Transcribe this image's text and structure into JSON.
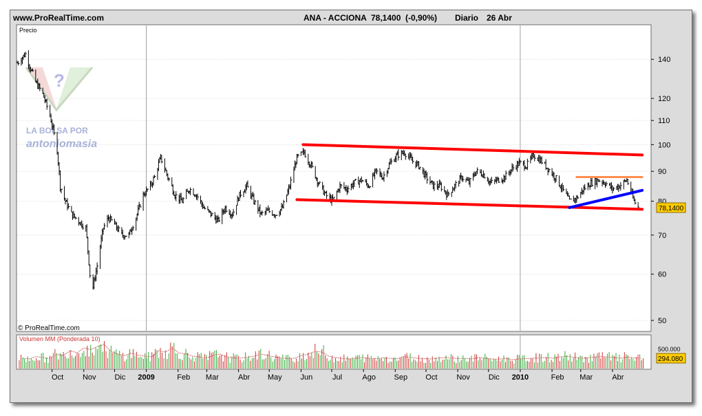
{
  "header": {
    "site": "www.ProRealTime.com",
    "symbol": "ANA - ACCIONA",
    "price": "78,1400",
    "change": "(-0,90%)",
    "period": "Diario",
    "date": "26 Abr"
  },
  "watermark": {
    "line1": "LA BOLSA POR",
    "line2": "antoniomasia"
  },
  "footer": {
    "copyright": "© ProRealTime.com"
  },
  "price_panel": {
    "label": "Precio",
    "last_value": "78,1400"
  },
  "volume_panel": {
    "label": "Volumen MM (Ponderada 10)",
    "last_value": "294.080",
    "top_tick": "500.000"
  },
  "colors": {
    "trend": "#ff0000",
    "resistance": "#ff8c50",
    "support": "#0000ff",
    "bar": "#000000",
    "volume_up": "#33aa33",
    "volume_down": "#cc3333",
    "price_badge": "#ffcc00"
  },
  "chart_data": {
    "type": "line",
    "title": "ANA - ACCIONA 78,1400 (-0,90%) Diario 26 Abr",
    "scale": "log",
    "ylim": [
      48,
      160
    ],
    "yticks": [
      50,
      60,
      70,
      80,
      90,
      100,
      110,
      120,
      140
    ],
    "xtick_labels": [
      "Oct",
      "Nov",
      "Dic",
      "2009",
      "Feb",
      "Mar",
      "Abr",
      "May",
      "Jun",
      "Jul",
      "Ago",
      "Sep",
      "Oct",
      "Nov",
      "Dic",
      "2010",
      "Feb",
      "Mar",
      "Abr"
    ],
    "grid": true,
    "series": [
      {
        "x": [
          "2008-08-28",
          "2008-09-05",
          "2008-09-10",
          "2008-09-15",
          "2008-09-22",
          "2008-09-29",
          "2008-10-06",
          "2008-10-09",
          "2008-10-14",
          "2008-10-20",
          "2008-10-27",
          "2008-11-03",
          "2008-11-07",
          "2008-11-10",
          "2008-11-14",
          "2008-11-20",
          "2008-11-25",
          "2008-12-01",
          "2008-12-08",
          "2008-12-15",
          "2008-12-22",
          "2008-12-29",
          "2009-01-05",
          "2009-01-09",
          "2009-01-15",
          "2009-01-22",
          "2009-01-29",
          "2009-02-05",
          "2009-02-12",
          "2009-02-19",
          "2009-02-26",
          "2009-03-05",
          "2009-03-12",
          "2009-03-19",
          "2009-03-26",
          "2009-04-02",
          "2009-04-09",
          "2009-04-16",
          "2009-04-23",
          "2009-04-30",
          "2009-05-07",
          "2009-05-14",
          "2009-05-21",
          "2009-05-28",
          "2009-06-04",
          "2009-06-11",
          "2009-06-18",
          "2009-06-25",
          "2009-07-02",
          "2009-07-09",
          "2009-07-16",
          "2009-07-23",
          "2009-07-30",
          "2009-08-06",
          "2009-08-13",
          "2009-08-20",
          "2009-08-27",
          "2009-09-03",
          "2009-09-10",
          "2009-09-17",
          "2009-09-24",
          "2009-10-01",
          "2009-10-08",
          "2009-10-15",
          "2009-10-22",
          "2009-10-29",
          "2009-11-05",
          "2009-11-12",
          "2009-11-19",
          "2009-11-26",
          "2009-12-03",
          "2009-12-10",
          "2009-12-17",
          "2009-12-24",
          "2009-12-31",
          "2010-01-07",
          "2010-01-14",
          "2010-01-21",
          "2010-01-28",
          "2010-02-04",
          "2010-02-11",
          "2010-02-18",
          "2010-02-25",
          "2010-03-04",
          "2010-03-11",
          "2010-03-18",
          "2010-03-25",
          "2010-04-01",
          "2010-04-08",
          "2010-04-15",
          "2010-04-22",
          "2010-04-26"
        ],
        "y": [
          138,
          143,
          135,
          128,
          122,
          112,
          98,
          85,
          80,
          76,
          74,
          72,
          60,
          57,
          62,
          72,
          75,
          73,
          70,
          70,
          75,
          82,
          85,
          88,
          95,
          88,
          82,
          80,
          84,
          82,
          78,
          76,
          74,
          78,
          76,
          82,
          85,
          80,
          76,
          77,
          76,
          78,
          85,
          95,
          97,
          92,
          86,
          82,
          80,
          85,
          84,
          86,
          87,
          85,
          90,
          88,
          93,
          96,
          97,
          94,
          92,
          88,
          85,
          85,
          82,
          85,
          88,
          86,
          90,
          89,
          86,
          87,
          88,
          91,
          93,
          92,
          96,
          94,
          91,
          88,
          84,
          80,
          81,
          84,
          86,
          87,
          86,
          84,
          85,
          87,
          80,
          78.14
        ]
      }
    ],
    "annotations": [
      {
        "type": "trendline",
        "color": "red",
        "from": [
          "2009-06-03",
          100
        ],
        "to": [
          "2010-04-30",
          96
        ]
      },
      {
        "type": "trendline",
        "color": "red",
        "from": [
          "2009-05-28",
          80.5
        ],
        "to": [
          "2010-04-30",
          77.5
        ]
      },
      {
        "type": "trendline",
        "color": "orange",
        "from": [
          "2010-02-25",
          88
        ],
        "to": [
          "2010-04-30",
          88
        ]
      },
      {
        "type": "trendline",
        "color": "blue",
        "from": [
          "2010-02-18",
          78
        ],
        "to": [
          "2010-04-30",
          83.5
        ]
      }
    ],
    "volume": {
      "label": "Volumen MM (Ponderada 10)",
      "last": 294080,
      "values": [
        300,
        280,
        350,
        320,
        290,
        410,
        380,
        520,
        460,
        600,
        550,
        640,
        700,
        500,
        420,
        380,
        450,
        390,
        360,
        340,
        520,
        480,
        600,
        450,
        430,
        360,
        340,
        300,
        380,
        420,
        340,
        310,
        300,
        330,
        360,
        420,
        380,
        340,
        310,
        290,
        300,
        380,
        420,
        500,
        480,
        360,
        320,
        290,
        280,
        300,
        320,
        300,
        290,
        310,
        300,
        280,
        350,
        330,
        300,
        290,
        280,
        300,
        320,
        310,
        290,
        300,
        280,
        320,
        300,
        280,
        270,
        300,
        260,
        280,
        290,
        300,
        310,
        320,
        300,
        340,
        360,
        330,
        300,
        310,
        330,
        350,
        340,
        320,
        300,
        330,
        310,
        294
      ]
    }
  }
}
